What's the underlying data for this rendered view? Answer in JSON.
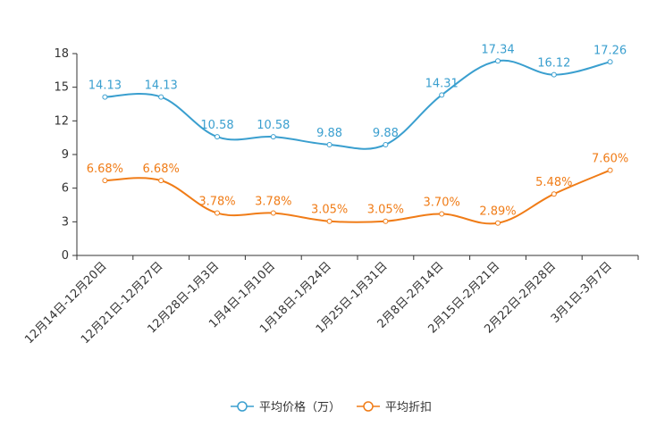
{
  "chart_data": {
    "type": "line",
    "title": "",
    "xlabel": "",
    "ylabel": "",
    "ylim": [
      0,
      18
    ],
    "yticks": [
      0,
      3,
      6,
      9,
      12,
      15,
      18
    ],
    "categories": [
      "12月14日-12月20日",
      "12月21日-12月27日",
      "12月28日-1月3日",
      "1月4日-1月10日",
      "1月18日-1月24日",
      "1月25日-1月31日",
      "2月8日-2月14日",
      "2月15日-2月21日",
      "2月22日-2月28日",
      "3月1日-3月7日"
    ],
    "series": [
      {
        "name": "平均价格（万）",
        "color": "#3a9fcf",
        "values": [
          14.13,
          14.13,
          10.58,
          10.58,
          9.88,
          9.88,
          14.31,
          17.34,
          16.12,
          17.26
        ],
        "labels": [
          "14.13",
          "14.13",
          "10.58",
          "10.58",
          "9.88",
          "9.88",
          "14.31",
          "17.34",
          "16.12",
          "17.26"
        ]
      },
      {
        "name": "平均折扣",
        "color": "#f07c17",
        "values": [
          6.68,
          6.68,
          3.78,
          3.78,
          3.05,
          3.05,
          3.7,
          2.89,
          5.48,
          7.6
        ],
        "labels": [
          "6.68%",
          "6.68%",
          "3.78%",
          "3.78%",
          "3.05%",
          "3.05%",
          "3.70%",
          "2.89%",
          "5.48%",
          "7.60%"
        ]
      }
    ],
    "legend_position": "bottom-center",
    "grid": false
  }
}
